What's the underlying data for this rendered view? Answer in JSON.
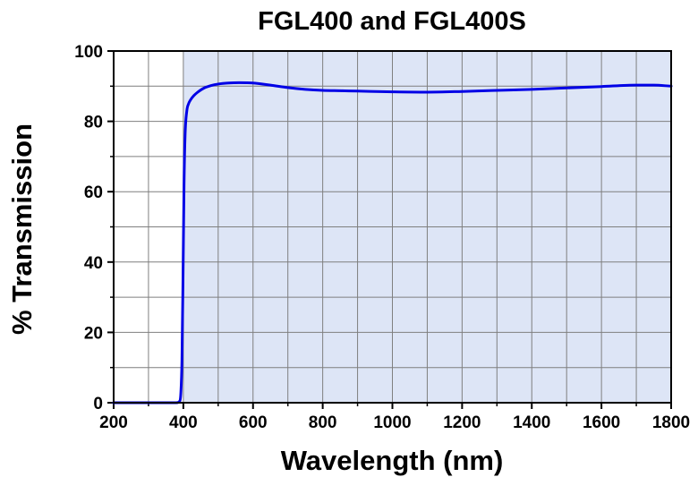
{
  "chart_data": {
    "type": "line",
    "title": "FGL400 and FGL400S",
    "xlabel": "Wavelength (nm)",
    "ylabel": "% Transmission",
    "xlim": [
      200,
      1800
    ],
    "ylim": [
      0,
      100
    ],
    "xticks": [
      200,
      400,
      600,
      800,
      1000,
      1200,
      1400,
      1600,
      1800
    ],
    "yticks": [
      0,
      20,
      40,
      60,
      80,
      100
    ],
    "grid": true,
    "shaded_region": {
      "x_from": 400,
      "x_to": 1800,
      "color": "#dde5f6"
    },
    "series": [
      {
        "color": "#0000e6",
        "x": [
          200,
          300,
          380,
          390,
          393,
          396,
          399,
          402,
          405,
          410,
          415,
          420,
          430,
          440,
          460,
          480,
          500,
          530,
          560,
          600,
          650,
          700,
          750,
          800,
          850,
          900,
          1000,
          1100,
          1200,
          1300,
          1400,
          1500,
          1600,
          1700,
          1750,
          1800
        ],
        "y": [
          0,
          0,
          0,
          0.5,
          3,
          12,
          35,
          62,
          76,
          83,
          85,
          86,
          87.3,
          88.2,
          89.5,
          90.2,
          90.6,
          90.9,
          91.0,
          90.9,
          90.3,
          89.6,
          89.1,
          88.8,
          88.7,
          88.6,
          88.4,
          88.3,
          88.5,
          88.8,
          89.1,
          89.5,
          89.9,
          90.3,
          90.3,
          90.0
        ]
      }
    ]
  }
}
